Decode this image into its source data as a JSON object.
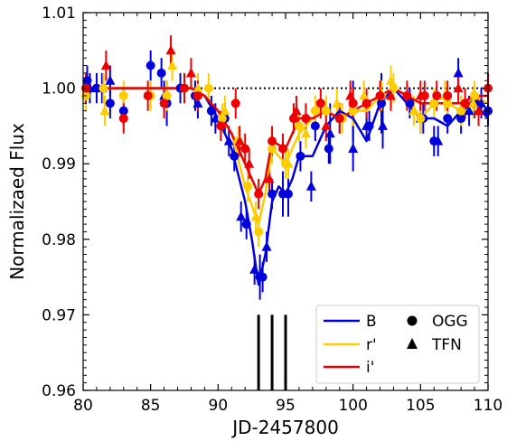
{
  "chart_data": {
    "type": "scatter",
    "xlabel": "JD-2457800",
    "ylabel": "Normalizaed Flux",
    "xlim": [
      80,
      110
    ],
    "ylim": [
      0.96,
      1.01
    ],
    "x_ticks": [
      80,
      85,
      90,
      95,
      100,
      105,
      110
    ],
    "y_ticks": [
      0.96,
      0.97,
      0.98,
      0.99,
      1.0,
      1.01
    ],
    "x_tick_labels": [
      "80",
      "85",
      "90",
      "95",
      "100",
      "105",
      "110"
    ],
    "y_tick_labels": [
      "0.96",
      "0.97",
      "0.98",
      "0.99",
      "1.00",
      "1.01"
    ],
    "grid": false,
    "reference_line": {
      "y": 1.0,
      "style": "dotted",
      "color": "#000000"
    },
    "vertical_markers": [
      93.0,
      94.0,
      95.0
    ],
    "vertical_marker_range": [
      0.96,
      0.97
    ],
    "legend_placement": "bottom-right",
    "legend": {
      "bands": [
        {
          "label": "B",
          "color": "#0000dd"
        },
        {
          "label": "r'",
          "color": "#ffcc00"
        },
        {
          "label": "i'",
          "color": "#ee0000"
        }
      ],
      "observatories": [
        {
          "label": "OGG",
          "marker": "circle"
        },
        {
          "label": "TFN",
          "marker": "triangle"
        }
      ]
    },
    "series": [
      {
        "name": "B",
        "color": "#0000dd",
        "model": [
          [
            80,
            1.0
          ],
          [
            88,
            1.0
          ],
          [
            89,
            0.999
          ],
          [
            90,
            0.996
          ],
          [
            91,
            0.992
          ],
          [
            92,
            0.985
          ],
          [
            92.5,
            0.98
          ],
          [
            93,
            0.974
          ],
          [
            93.5,
            0.978
          ],
          [
            94,
            0.985
          ],
          [
            94.5,
            0.987
          ],
          [
            95,
            0.986
          ],
          [
            95.5,
            0.988
          ],
          [
            96,
            0.991
          ],
          [
            97,
            0.991
          ],
          [
            98,
            0.995
          ],
          [
            99,
            0.997
          ],
          [
            100,
            0.996
          ],
          [
            101,
            0.993
          ],
          [
            102,
            0.998
          ],
          [
            103,
            1.0
          ],
          [
            104,
            0.998
          ],
          [
            105,
            0.996
          ],
          [
            106,
            0.996
          ],
          [
            107,
            0.995
          ],
          [
            108,
            0.997
          ],
          [
            109,
            0.998
          ],
          [
            110,
            0.996
          ]
        ],
        "ogg": [
          [
            80.3,
            1.001
          ],
          [
            81.0,
            1.0
          ],
          [
            82.0,
            0.998
          ],
          [
            83.0,
            0.997
          ],
          [
            85.0,
            1.003
          ],
          [
            85.8,
            1.002
          ],
          [
            86.2,
            0.998
          ],
          [
            87.2,
            1.0
          ],
          [
            88.3,
            0.999
          ],
          [
            89.5,
            0.997
          ],
          [
            90.5,
            0.996
          ],
          [
            91.2,
            0.991
          ],
          [
            92.1,
            0.982
          ],
          [
            93.1,
            0.975
          ],
          [
            93.3,
            0.975
          ],
          [
            94.0,
            0.986
          ],
          [
            94.8,
            0.986
          ],
          [
            95.2,
            0.986
          ],
          [
            96.1,
            0.991
          ],
          [
            97.2,
            0.995
          ],
          [
            98.2,
            0.992
          ],
          [
            99.0,
            0.996
          ],
          [
            100.0,
            0.997
          ],
          [
            101.2,
            0.995
          ],
          [
            102.1,
            0.998
          ],
          [
            104.2,
            0.998
          ],
          [
            105.2,
            0.996
          ],
          [
            106.0,
            0.993
          ],
          [
            107.0,
            0.996
          ],
          [
            108.0,
            0.996
          ],
          [
            109.0,
            0.998
          ],
          [
            110.0,
            0.997
          ]
        ],
        "ogg_err": [
          0.002,
          0.002,
          0.002,
          0.002,
          0.002,
          0.002,
          0.003,
          0.002,
          0.002,
          0.002,
          0.002,
          0.002,
          0.002,
          0.003,
          0.002,
          0.002,
          0.003,
          0.003,
          0.002,
          0.002,
          0.002,
          0.002,
          0.004,
          0.002,
          0.004,
          0.002,
          0.002,
          0.002,
          0.002,
          0.002,
          0.002,
          0.002
        ],
        "tfn": [
          [
            80.5,
            1.0
          ],
          [
            81.4,
            1.0
          ],
          [
            82.0,
            1.001
          ],
          [
            86.0,
            0.999
          ],
          [
            88.5,
            0.998
          ],
          [
            89.8,
            0.996
          ],
          [
            90.8,
            0.993
          ],
          [
            91.7,
            0.983
          ],
          [
            92.7,
            0.976
          ],
          [
            93.6,
            0.979
          ],
          [
            96.9,
            0.987
          ],
          [
            98.3,
            0.994
          ],
          [
            100.0,
            0.992
          ],
          [
            101.0,
            0.995
          ],
          [
            102.2,
            0.995
          ],
          [
            105.0,
            0.996
          ],
          [
            106.3,
            0.993
          ],
          [
            107.8,
            1.002
          ],
          [
            108.6,
            0.997
          ],
          [
            109.5,
            0.998
          ]
        ],
        "tfn_err": [
          0.002,
          0.002,
          0.002,
          0.002,
          0.002,
          0.002,
          0.002,
          0.002,
          0.002,
          0.002,
          0.002,
          0.004,
          0.003,
          0.002,
          0.003,
          0.002,
          0.002,
          0.002,
          0.002,
          0.002
        ]
      },
      {
        "name": "r'",
        "color": "#ffcc00",
        "model": [
          [
            80,
            1.0
          ],
          [
            88,
            1.0
          ],
          [
            89,
            0.999
          ],
          [
            90,
            0.997
          ],
          [
            91,
            0.994
          ],
          [
            92,
            0.987
          ],
          [
            93,
            0.982
          ],
          [
            93.5,
            0.986
          ],
          [
            94,
            0.992
          ],
          [
            95,
            0.99
          ],
          [
            96,
            0.994
          ],
          [
            97,
            0.996
          ],
          [
            98,
            0.997
          ],
          [
            99,
            0.996
          ],
          [
            100,
            0.997
          ],
          [
            101,
            0.997
          ],
          [
            102,
            0.999
          ],
          [
            103,
            1.0
          ],
          [
            104,
            0.999
          ],
          [
            105,
            0.996
          ],
          [
            106,
            0.998
          ],
          [
            107,
            0.998
          ],
          [
            108,
            0.997
          ],
          [
            109,
            0.999
          ],
          [
            110,
            0.998
          ]
        ],
        "ogg": [
          [
            80.2,
            0.999
          ],
          [
            81.5,
            1.0
          ],
          [
            83.0,
            0.999
          ],
          [
            85.0,
            0.999
          ],
          [
            86.2,
            0.999
          ],
          [
            87.5,
            1.0
          ],
          [
            88.5,
            0.999
          ],
          [
            89.3,
            1.0
          ],
          [
            90.3,
            0.996
          ],
          [
            91.5,
            0.993
          ],
          [
            92.2,
            0.987
          ],
          [
            93.0,
            0.981
          ],
          [
            94.0,
            0.992
          ],
          [
            95.0,
            0.99
          ],
          [
            96.0,
            0.995
          ],
          [
            97.2,
            0.997
          ],
          [
            98.0,
            0.997
          ],
          [
            99.2,
            0.996
          ],
          [
            100.0,
            0.997
          ],
          [
            102.1,
            0.999
          ],
          [
            103.0,
            1.0
          ],
          [
            105.0,
            0.996
          ],
          [
            106.0,
            0.998
          ],
          [
            107.0,
            0.998
          ],
          [
            108.0,
            0.997
          ],
          [
            109.0,
            0.999
          ]
        ],
        "ogg_err": [
          0.002,
          0.002,
          0.002,
          0.002,
          0.002,
          0.002,
          0.002,
          0.002,
          0.002,
          0.002,
          0.002,
          0.002,
          0.002,
          0.002,
          0.002,
          0.002,
          0.002,
          0.002,
          0.002,
          0.002,
          0.002,
          0.002,
          0.002,
          0.002,
          0.002,
          0.002
        ],
        "tfn": [
          [
            81.6,
            0.997
          ],
          [
            86.6,
            1.003
          ],
          [
            88.5,
            1.0
          ],
          [
            90.5,
            0.997
          ],
          [
            92.8,
            0.983
          ],
          [
            95.2,
            0.99
          ],
          [
            96.5,
            0.994
          ],
          [
            98.8,
            0.998
          ],
          [
            100.8,
            0.999
          ],
          [
            102.8,
            1.001
          ],
          [
            104.5,
            0.997
          ],
          [
            106.8,
            0.999
          ],
          [
            108.9,
            0.998
          ]
        ],
        "tfn_err": [
          0.002,
          0.002,
          0.002,
          0.002,
          0.002,
          0.002,
          0.002,
          0.002,
          0.002,
          0.002,
          0.002,
          0.002,
          0.002
        ]
      },
      {
        "name": "i'",
        "color": "#ee0000",
        "model": [
          [
            80,
            1.0
          ],
          [
            88,
            1.0
          ],
          [
            89,
            0.999
          ],
          [
            90,
            0.997
          ],
          [
            91,
            0.994
          ],
          [
            92,
            0.99
          ],
          [
            93,
            0.986
          ],
          [
            93.5,
            0.988
          ],
          [
            94,
            0.993
          ],
          [
            95,
            0.992
          ],
          [
            95.5,
            0.994
          ],
          [
            96,
            0.996
          ],
          [
            97,
            0.996
          ],
          [
            98,
            0.997
          ],
          [
            99,
            0.996
          ],
          [
            100,
            0.997
          ],
          [
            101,
            0.998
          ],
          [
            102,
            0.999
          ],
          [
            103,
            1.0
          ],
          [
            104,
            0.999
          ],
          [
            105,
            0.998
          ],
          [
            106,
            0.998
          ],
          [
            107,
            0.998
          ],
          [
            108,
            0.998
          ],
          [
            109,
            0.999
          ],
          [
            110,
            0.999
          ]
        ],
        "ogg": [
          [
            80.2,
            1.0
          ],
          [
            83.0,
            0.996
          ],
          [
            84.8,
            0.999
          ],
          [
            86.0,
            0.998
          ],
          [
            87.5,
            1.0
          ],
          [
            88.5,
            0.999
          ],
          [
            90.2,
            0.995
          ],
          [
            91.3,
            0.998
          ],
          [
            92.0,
            0.992
          ],
          [
            93.0,
            0.986
          ],
          [
            94.0,
            0.993
          ],
          [
            94.8,
            0.992
          ],
          [
            95.6,
            0.996
          ],
          [
            96.5,
            0.996
          ],
          [
            97.6,
            0.998
          ],
          [
            99.0,
            0.996
          ],
          [
            100.0,
            0.998
          ],
          [
            101.0,
            0.998
          ],
          [
            102.0,
            0.999
          ],
          [
            104.0,
            0.999
          ],
          [
            105.3,
            0.999
          ],
          [
            106.2,
            0.999
          ],
          [
            107.0,
            0.999
          ],
          [
            108.3,
            0.998
          ],
          [
            110.0,
            1.0
          ]
        ],
        "ogg_err": [
          0.002,
          0.002,
          0.002,
          0.002,
          0.002,
          0.002,
          0.002,
          0.002,
          0.002,
          0.002,
          0.002,
          0.002,
          0.002,
          0.002,
          0.002,
          0.002,
          0.002,
          0.002,
          0.002,
          0.002,
          0.002,
          0.002,
          0.002,
          0.002,
          0.002
        ],
        "tfn": [
          [
            81.7,
            1.003
          ],
          [
            86.5,
            1.005
          ],
          [
            88.0,
            1.002
          ],
          [
            91.6,
            0.993
          ],
          [
            92.3,
            0.99
          ],
          [
            93.8,
            0.988
          ],
          [
            95.8,
            0.997
          ],
          [
            98.0,
            0.995
          ],
          [
            99.8,
            0.999
          ],
          [
            102.8,
            0.999
          ],
          [
            105.0,
            0.999
          ],
          [
            107.8,
            1.0
          ],
          [
            109.3,
            0.997
          ]
        ],
        "tfn_err": [
          0.002,
          0.002,
          0.002,
          0.002,
          0.002,
          0.002,
          0.002,
          0.002,
          0.002,
          0.002,
          0.002,
          0.002,
          0.002
        ]
      }
    ]
  }
}
